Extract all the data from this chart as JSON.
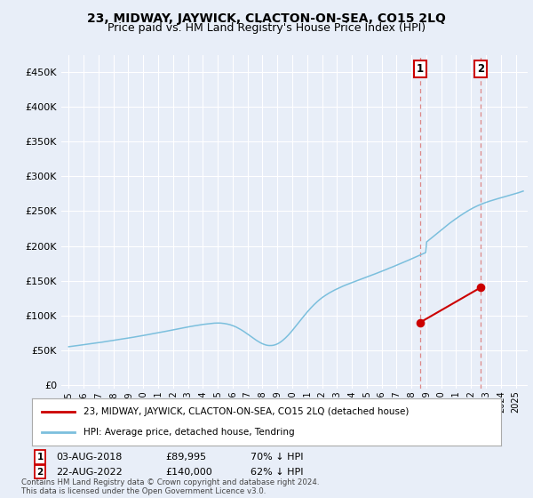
{
  "title": "23, MIDWAY, JAYWICK, CLACTON-ON-SEA, CO15 2LQ",
  "subtitle": "Price paid vs. HM Land Registry's House Price Index (HPI)",
  "title_fontsize": 10,
  "subtitle_fontsize": 9,
  "ylabel_ticks": [
    "£0",
    "£50K",
    "£100K",
    "£150K",
    "£200K",
    "£250K",
    "£300K",
    "£350K",
    "£400K",
    "£450K"
  ],
  "ytick_values": [
    0,
    50000,
    100000,
    150000,
    200000,
    250000,
    300000,
    350000,
    400000,
    450000
  ],
  "ylim": [
    0,
    475000
  ],
  "xlim_start": 1994.5,
  "xlim_end": 2025.8,
  "hpi_color": "#7bbfdd",
  "price_color": "#cc0000",
  "marker1_date": 2018.58,
  "marker1_price": 89995,
  "marker2_date": 2022.63,
  "marker2_price": 140000,
  "legend_line1": "23, MIDWAY, JAYWICK, CLACTON-ON-SEA, CO15 2LQ (detached house)",
  "legend_line2": "HPI: Average price, detached house, Tendring",
  "footnote": "Contains HM Land Registry data © Crown copyright and database right 2024.\nThis data is licensed under the Open Government Licence v3.0.",
  "vline_color": "#dd8888",
  "background_color": "#e8eef8"
}
